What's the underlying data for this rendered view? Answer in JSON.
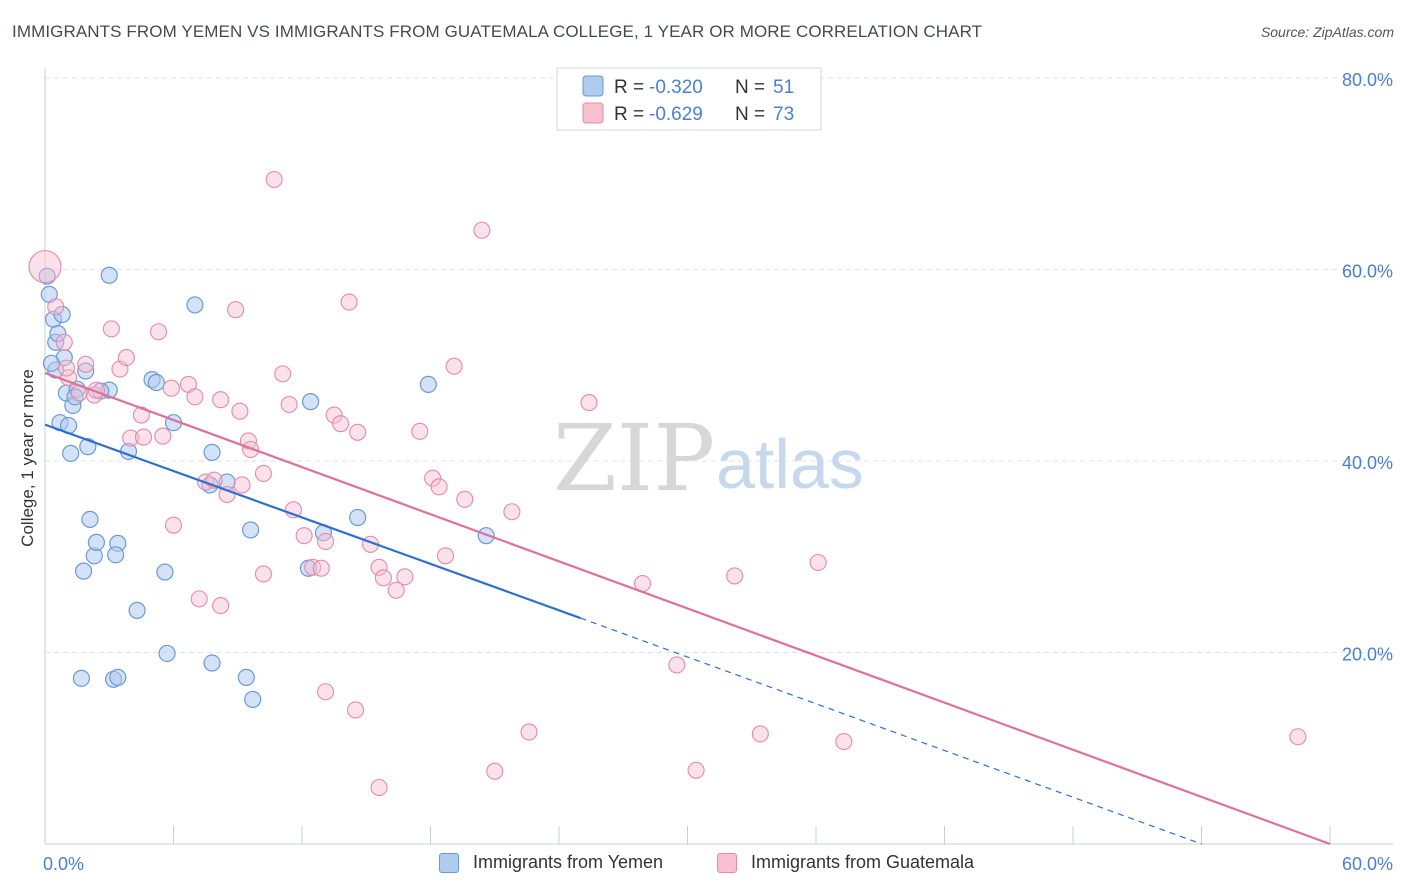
{
  "title": "IMMIGRANTS FROM YEMEN VS IMMIGRANTS FROM GUATEMALA COLLEGE, 1 YEAR OR MORE CORRELATION CHART",
  "source": "Source: ZipAtlas.com",
  "watermark": {
    "zip": "ZIP",
    "atlas": "atlas"
  },
  "colors": {
    "yemen_fill": "#aecbf0",
    "yemen_stroke": "#6a9ad6",
    "yemen_line": "#2d6fd1",
    "guatemala_fill": "#f7bfd0",
    "guatemala_stroke": "#e58aa6",
    "guatemala_line": "#e0709a",
    "tick_label": "#4a7fd4",
    "grid": "#dde3ea"
  },
  "legend": {
    "rows": [
      {
        "r_label": "R =",
        "r_value": "-0.320",
        "n_label": "N =",
        "n_value": "51"
      },
      {
        "r_label": "R =",
        "r_value": "-0.629",
        "n_label": "N =",
        "n_value": "73"
      }
    ]
  },
  "bottom_legend": {
    "yemen": "Immigrants from Yemen",
    "guatemala": "Immigrants from Guatemala"
  },
  "chart_data": {
    "type": "scatter",
    "title": "IMMIGRANTS FROM YEMEN VS IMMIGRANTS FROM GUATEMALA COLLEGE, 1 YEAR OR MORE CORRELATION CHART",
    "xlabel": "",
    "ylabel": "College, 1 year or more",
    "xlim": [
      0,
      60
    ],
    "ylim": [
      0,
      80
    ],
    "x_tick_labels": [
      "0.0%",
      "60.0%"
    ],
    "y_ticks": [
      20,
      40,
      60,
      80
    ],
    "y_tick_labels": [
      "20.0%",
      "40.0%",
      "60.0%",
      "80.0%"
    ],
    "grid": true,
    "legend_position": "top-center",
    "series": [
      {
        "name": "Immigrants from Yemen",
        "r": -0.32,
        "n": 51,
        "points": [
          [
            0.1,
            59.3
          ],
          [
            0.2,
            57.4
          ],
          [
            0.4,
            54.8
          ],
          [
            0.5,
            52.4
          ],
          [
            0.6,
            53.3
          ],
          [
            0.8,
            55.3
          ],
          [
            0.5,
            49.5
          ],
          [
            0.9,
            50.8
          ],
          [
            1.0,
            47.1
          ],
          [
            0.7,
            44.0
          ],
          [
            1.1,
            43.7
          ],
          [
            1.3,
            45.8
          ],
          [
            1.2,
            40.8
          ],
          [
            1.5,
            47.5
          ],
          [
            1.9,
            49.4
          ],
          [
            3.0,
            47.4
          ],
          [
            2.0,
            41.5
          ],
          [
            2.1,
            33.9
          ],
          [
            2.3,
            30.1
          ],
          [
            2.4,
            31.5
          ],
          [
            1.8,
            28.5
          ],
          [
            3.4,
            31.4
          ],
          [
            3.3,
            30.2
          ],
          [
            3.0,
            59.4
          ],
          [
            5.0,
            48.5
          ],
          [
            5.2,
            48.2
          ],
          [
            6.0,
            44.0
          ],
          [
            7.0,
            56.3
          ],
          [
            5.6,
            28.4
          ],
          [
            7.8,
            40.9
          ],
          [
            7.7,
            37.5
          ],
          [
            8.5,
            37.8
          ],
          [
            9.6,
            32.8
          ],
          [
            12.4,
            46.2
          ],
          [
            12.3,
            28.8
          ],
          [
            14.6,
            34.1
          ],
          [
            17.9,
            48.0
          ],
          [
            20.6,
            32.2
          ],
          [
            4.3,
            24.4
          ],
          [
            5.7,
            19.9
          ],
          [
            7.8,
            18.9
          ],
          [
            9.4,
            17.4
          ],
          [
            9.7,
            15.1
          ],
          [
            1.7,
            17.3
          ],
          [
            3.2,
            17.2
          ],
          [
            3.4,
            17.4
          ],
          [
            13.0,
            32.5
          ],
          [
            3.9,
            41.0
          ],
          [
            0.3,
            50.2
          ],
          [
            1.4,
            46.7
          ],
          [
            2.6,
            47.3
          ]
        ]
      },
      {
        "name": "Immigrants from Guatemala",
        "r": -0.629,
        "n": 73,
        "points": [
          [
            0.0,
            60.3
          ],
          [
            0.5,
            56.1
          ],
          [
            0.9,
            52.4
          ],
          [
            1.1,
            48.7
          ],
          [
            1.6,
            47.1
          ],
          [
            1.9,
            50.1
          ],
          [
            2.3,
            46.9
          ],
          [
            2.4,
            47.4
          ],
          [
            3.1,
            53.8
          ],
          [
            3.5,
            49.6
          ],
          [
            3.8,
            50.8
          ],
          [
            4.0,
            42.4
          ],
          [
            4.5,
            44.8
          ],
          [
            4.6,
            42.5
          ],
          [
            5.3,
            53.5
          ],
          [
            5.5,
            42.6
          ],
          [
            5.9,
            47.6
          ],
          [
            6.7,
            48.0
          ],
          [
            7.0,
            46.7
          ],
          [
            7.5,
            37.8
          ],
          [
            7.9,
            38.0
          ],
          [
            8.2,
            46.4
          ],
          [
            8.5,
            36.5
          ],
          [
            8.9,
            55.8
          ],
          [
            9.1,
            45.2
          ],
          [
            9.5,
            42.1
          ],
          [
            9.6,
            41.2
          ],
          [
            10.2,
            38.7
          ],
          [
            11.1,
            49.1
          ],
          [
            11.4,
            45.9
          ],
          [
            10.7,
            69.4
          ],
          [
            11.6,
            34.9
          ],
          [
            12.1,
            32.2
          ],
          [
            12.5,
            28.9
          ],
          [
            12.9,
            28.8
          ],
          [
            13.1,
            31.6
          ],
          [
            13.5,
            44.8
          ],
          [
            13.8,
            43.9
          ],
          [
            14.2,
            56.6
          ],
          [
            14.6,
            43.0
          ],
          [
            15.2,
            31.3
          ],
          [
            15.6,
            28.9
          ],
          [
            15.8,
            27.8
          ],
          [
            16.4,
            26.5
          ],
          [
            16.8,
            27.9
          ],
          [
            17.5,
            43.1
          ],
          [
            18.1,
            38.2
          ],
          [
            18.4,
            37.3
          ],
          [
            18.7,
            30.1
          ],
          [
            19.1,
            49.9
          ],
          [
            19.6,
            36.0
          ],
          [
            20.4,
            64.1
          ],
          [
            21.8,
            34.7
          ],
          [
            22.6,
            11.7
          ],
          [
            25.4,
            46.1
          ],
          [
            27.9,
            27.2
          ],
          [
            29.5,
            18.7
          ],
          [
            30.4,
            7.7
          ],
          [
            32.2,
            28.0
          ],
          [
            33.4,
            11.5
          ],
          [
            36.1,
            29.4
          ],
          [
            37.3,
            10.7
          ],
          [
            1.0,
            49.7
          ],
          [
            6.0,
            33.3
          ],
          [
            7.2,
            25.6
          ],
          [
            8.2,
            24.9
          ],
          [
            9.2,
            37.5
          ],
          [
            10.2,
            28.2
          ],
          [
            13.1,
            15.9
          ],
          [
            14.5,
            14.0
          ],
          [
            15.6,
            5.9
          ],
          [
            21.0,
            7.6
          ],
          [
            58.5,
            11.2
          ]
        ]
      }
    ],
    "trend_lines": [
      {
        "series": "Immigrants from Yemen",
        "start": [
          0,
          43.8
        ],
        "end": [
          25,
          23.6
        ],
        "dashed_end": [
          54,
          0
        ]
      },
      {
        "series": "Immigrants from Guatemala",
        "start": [
          0,
          49.2
        ],
        "end": [
          60,
          0
        ]
      }
    ]
  }
}
